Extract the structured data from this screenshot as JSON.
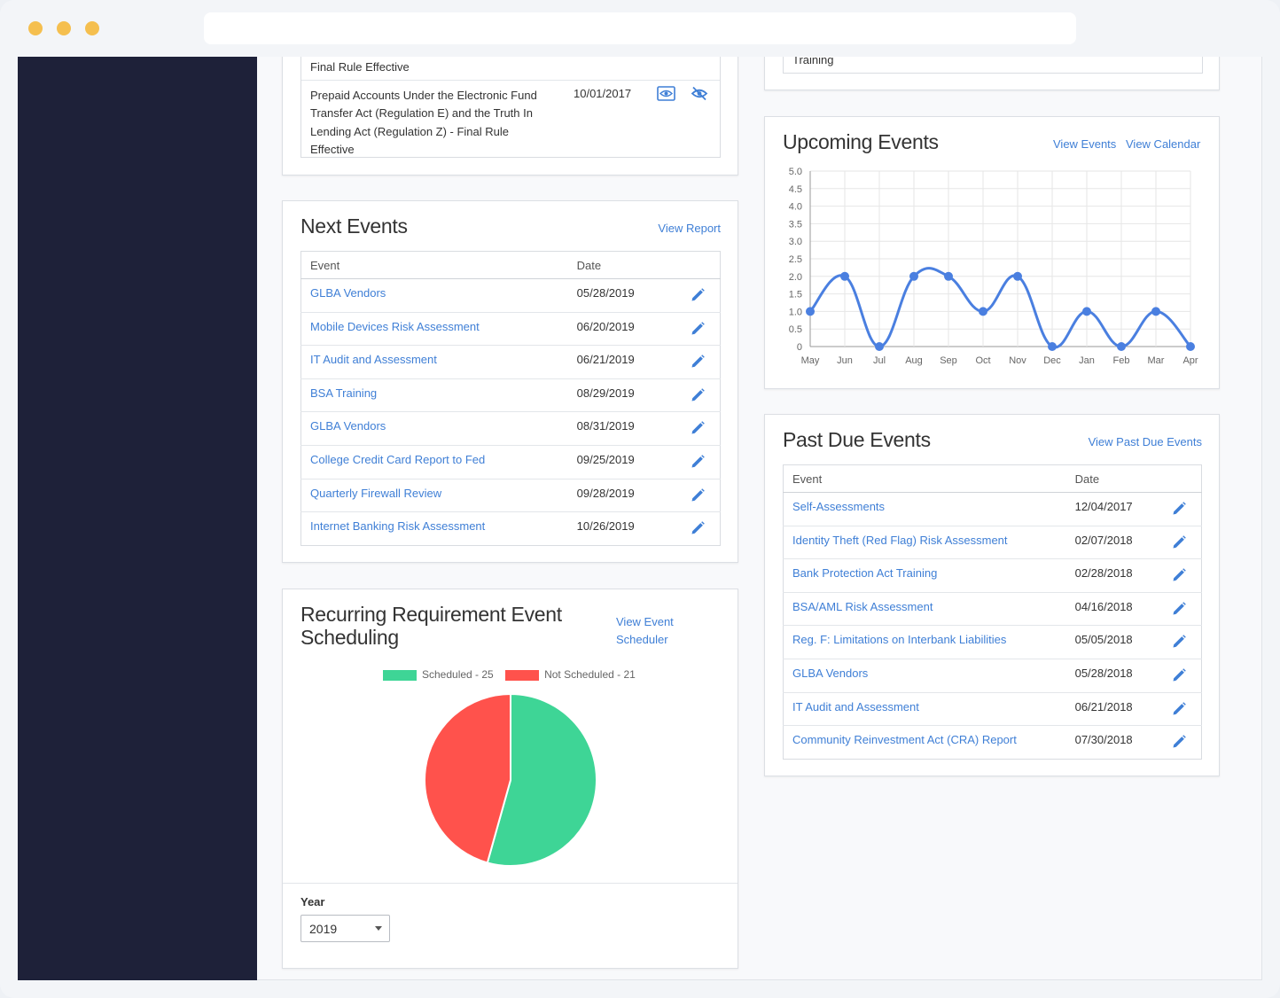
{
  "top_left": {
    "partial_row": "Final Rule Effective",
    "row": {
      "event": "Prepaid Accounts Under the Electronic Fund Transfer Act (Regulation E) and the Truth In Lending Act (Regulation Z) - Final Rule Effective",
      "date": "10/01/2017"
    }
  },
  "top_right": {
    "partial_row": "Training"
  },
  "next_events": {
    "title": "Next Events",
    "link": "View Report",
    "col_event": "Event",
    "col_date": "Date",
    "rows": [
      {
        "event": "GLBA Vendors",
        "date": "05/28/2019"
      },
      {
        "event": "Mobile Devices Risk Assessment",
        "date": "06/20/2019"
      },
      {
        "event": "IT Audit and Assessment",
        "date": "06/21/2019"
      },
      {
        "event": "BSA Training",
        "date": "08/29/2019"
      },
      {
        "event": "GLBA Vendors",
        "date": "08/31/2019"
      },
      {
        "event": "College Credit Card Report to Fed",
        "date": "09/25/2019"
      },
      {
        "event": "Quarterly Firewall Review",
        "date": "09/28/2019"
      },
      {
        "event": "Internet Banking Risk Assessment",
        "date": "10/26/2019"
      }
    ]
  },
  "recurring": {
    "title_line1": "Recurring Requirement Event",
    "title_line2": "Scheduling",
    "link_line1": "View Event",
    "link_line2": "Scheduler",
    "year_label": "Year",
    "year_value": "2019"
  },
  "upcoming": {
    "title": "Upcoming Events",
    "link_events": "View Events",
    "link_calendar": "View Calendar"
  },
  "past_due": {
    "title": "Past Due Events",
    "link": "View Past Due Events",
    "col_event": "Event",
    "col_date": "Date",
    "rows": [
      {
        "event": "Self-Assessments",
        "date": "12/04/2017"
      },
      {
        "event": "Identity Theft (Red Flag) Risk Assessment",
        "date": "02/07/2018"
      },
      {
        "event": "Bank Protection Act Training",
        "date": "02/28/2018"
      },
      {
        "event": "BSA/AML Risk Assessment",
        "date": "04/16/2018"
      },
      {
        "event": "Reg. F: Limitations on Interbank Liabilities",
        "date": "05/05/2018"
      },
      {
        "event": "GLBA Vendors",
        "date": "05/28/2018"
      },
      {
        "event": "IT Audit and Assessment",
        "date": "06/21/2018"
      },
      {
        "event": "Community Reinvestment Act (CRA) Report",
        "date": "07/30/2018"
      }
    ]
  },
  "colors": {
    "link": "#3f7fd6",
    "line": "#4a7fe0",
    "scheduled": "#3ed596",
    "not_scheduled": "#ff524c",
    "sidebar": "#1e2139"
  },
  "chart_data": [
    {
      "type": "line",
      "x": [
        "May",
        "Jun",
        "Jul",
        "Aug",
        "Sep",
        "Oct",
        "Nov",
        "Dec",
        "Jan",
        "Feb",
        "Mar",
        "Apr"
      ],
      "series": [
        {
          "values": [
            1,
            2,
            0,
            2,
            2,
            1,
            2,
            0,
            1,
            0,
            1,
            0
          ]
        }
      ],
      "ylim": [
        0,
        5
      ],
      "yticks": [
        "0",
        "0.5",
        "1.0",
        "1.5",
        "2.0",
        "2.5",
        "3.0",
        "3.5",
        "4.0",
        "4.5",
        "5.0"
      ],
      "grid": true
    },
    {
      "type": "pie",
      "categories": [
        "Scheduled - 25",
        "Not Scheduled - 21"
      ],
      "values": [
        25,
        21
      ],
      "legend": "top"
    }
  ]
}
